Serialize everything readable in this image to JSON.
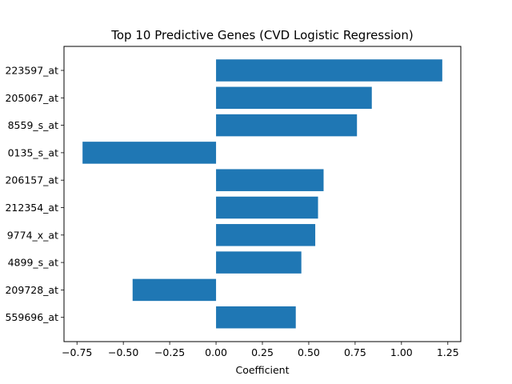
{
  "chart_data": {
    "type": "bar",
    "orientation": "horizontal",
    "title": "Top 10 Predictive Genes (CVD Logistic Regression)",
    "xlabel": "Coefficient",
    "ylabel": "",
    "categories": [
      "223597_at",
      "205067_at",
      "8559_s_at",
      "0135_s_at",
      "206157_at",
      "212354_at",
      "9774_x_at",
      "4899_s_at",
      "209728_at",
      "559696_at"
    ],
    "values": [
      1.22,
      0.84,
      0.76,
      -0.72,
      0.58,
      0.55,
      0.535,
      0.46,
      -0.45,
      0.43
    ],
    "xlim": [
      -0.82,
      1.32
    ],
    "xticks": [
      -0.75,
      -0.5,
      -0.25,
      0.0,
      0.25,
      0.5,
      0.75,
      1.0,
      1.25
    ],
    "xtick_labels": [
      "−0.75",
      "−0.50",
      "−0.25",
      "0.00",
      "0.25",
      "0.50",
      "0.75",
      "1.00",
      "1.25"
    ],
    "grid": false,
    "bar_color": "#1f77b4"
  }
}
